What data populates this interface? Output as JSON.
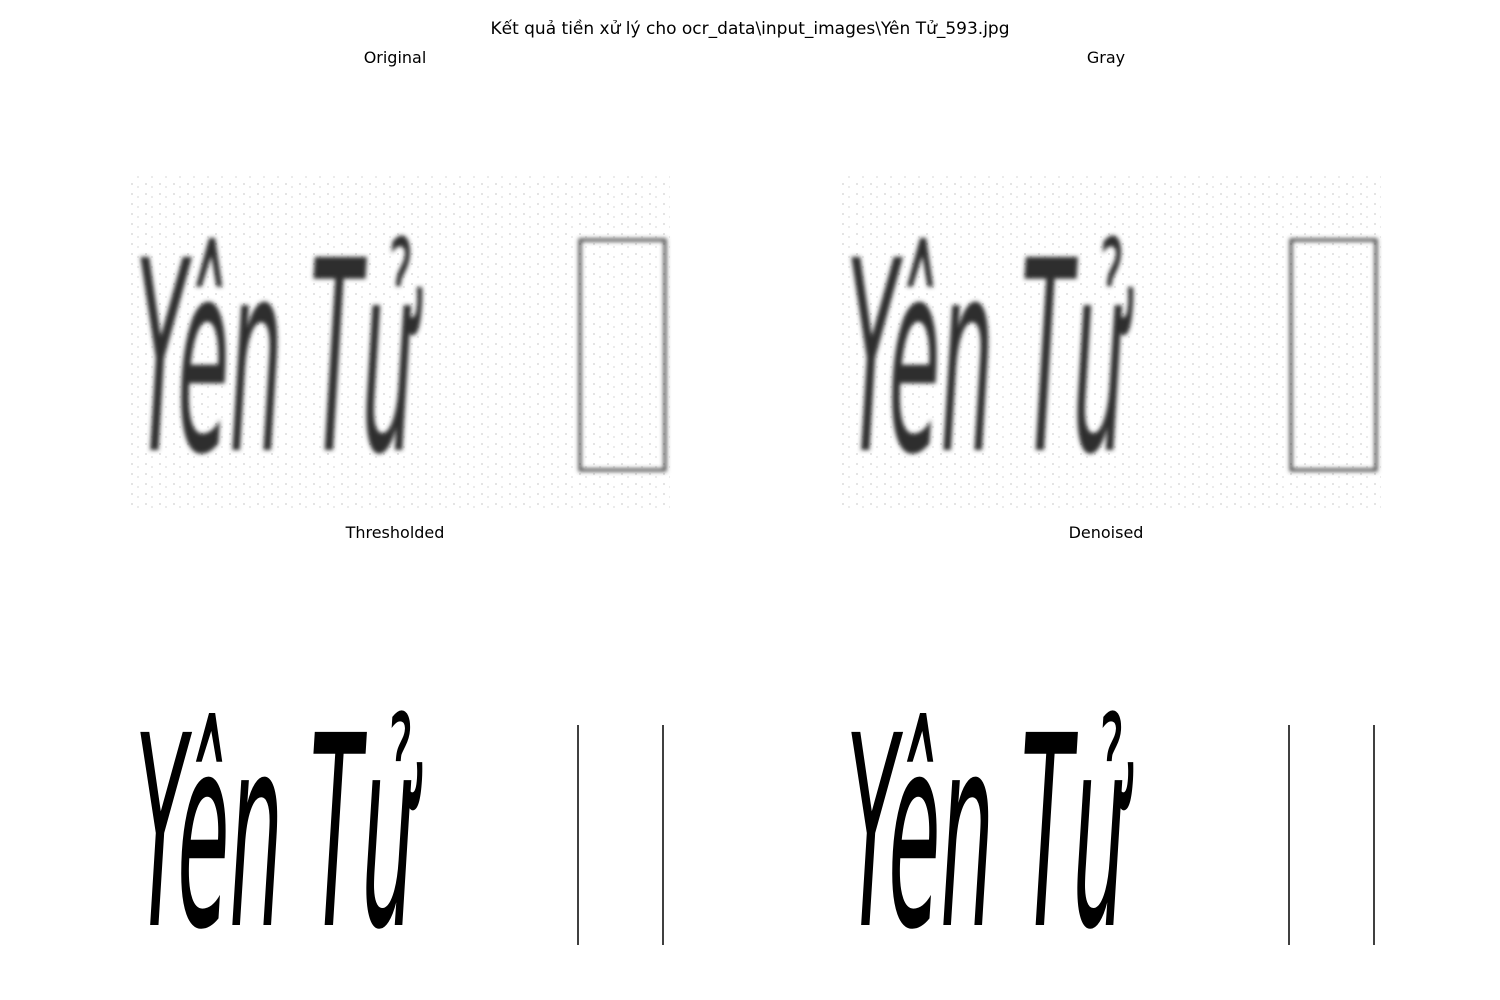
{
  "figure": {
    "suptitle": "Kết quả tiền xử lý cho ocr_data\\input_images\\Yên Tử_593.jpg"
  },
  "panels": [
    {
      "title": "Original",
      "image_text": "Yên Tử",
      "style": "blurred"
    },
    {
      "title": "Gray",
      "image_text": "Yên Tử",
      "style": "blurred"
    },
    {
      "title": "Thresholded",
      "image_text": "Yên Tử",
      "style": "binary"
    },
    {
      "title": "Denoised",
      "image_text": "Yên Tử",
      "style": "binary"
    }
  ],
  "colors": {
    "background": "#ffffff",
    "ink_gray": "#2e2e2e",
    "ink_black": "#000000"
  }
}
